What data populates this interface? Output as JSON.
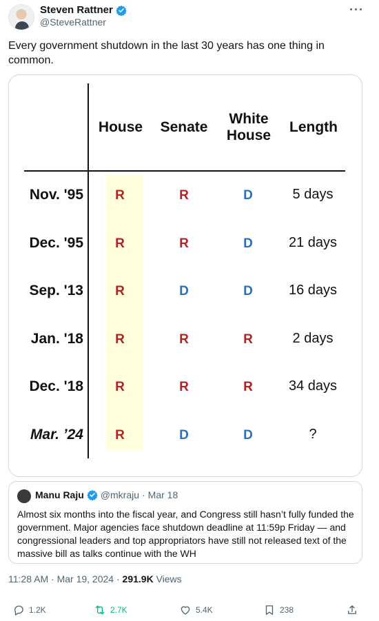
{
  "author": {
    "display_name": "Steven Rattner",
    "handle": "@SteveRattner"
  },
  "more_label": "···",
  "tweet_text": "Every government shutdown in the last 30 years has one thing in common.",
  "table": {
    "columns": [
      "House",
      "Senate",
      "White\nHouse",
      "Length"
    ],
    "rows": [
      {
        "label": "Nov. '95",
        "house": "R",
        "senate": "R",
        "white_house": "D",
        "length": "5 days"
      },
      {
        "label": "Dec. '95",
        "house": "R",
        "senate": "R",
        "white_house": "D",
        "length": "21 days"
      },
      {
        "label": "Sep. '13",
        "house": "R",
        "senate": "D",
        "white_house": "D",
        "length": "16 days"
      },
      {
        "label": "Jan. '18",
        "house": "R",
        "senate": "R",
        "white_house": "R",
        "length": "2 days"
      },
      {
        "label": "Dec. '18",
        "house": "R",
        "senate": "R",
        "white_house": "R",
        "length": "34 days"
      },
      {
        "label": "Mar. ’24",
        "house": "R",
        "senate": "D",
        "white_house": "D",
        "length": "?"
      }
    ],
    "colors": {
      "R": "#b22222",
      "D": "#2a6fb8",
      "house_highlight": "#ffffdd"
    }
  },
  "quote": {
    "display_name": "Manu Raju",
    "handle": "@mkraju",
    "separator": "·",
    "date": "Mar 18",
    "text": "Almost six months into the fiscal year, and Congress still hasn’t fully funded the government. Major agencies face shutdown deadline at 11:59p Friday — and congressional leaders and top appropriators have still not released text of the massive bill as talks continue with the WH"
  },
  "meta": {
    "time": "11:28 AM",
    "date": "Mar 19, 2024",
    "views_count": "291.9K",
    "views_label": "Views",
    "sep": "·"
  },
  "actions": {
    "replies": "1.2K",
    "reposts": "2.7K",
    "likes": "5.4K",
    "bookmarks": "238"
  },
  "icons": {
    "verified": "verified-badge-icon",
    "reply": "reply-icon",
    "repost": "repost-icon",
    "like": "heart-icon",
    "bookmark": "bookmark-icon",
    "share": "share-icon"
  },
  "accent_color": "#1d9bf0"
}
